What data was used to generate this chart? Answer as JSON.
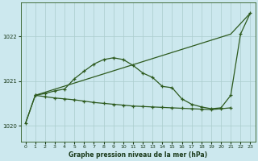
{
  "title": "Graphe pression niveau de la mer (hPa)",
  "bg_color": "#cce8ee",
  "grid_color": "#aacccc",
  "line_color": "#2d5a1e",
  "ylim": [
    1019.65,
    1022.75
  ],
  "yticks": [
    1020,
    1021,
    1022
  ],
  "xlim": [
    -0.5,
    23.5
  ],
  "xticks": [
    0,
    1,
    2,
    3,
    4,
    5,
    6,
    7,
    8,
    9,
    10,
    11,
    12,
    13,
    14,
    15,
    16,
    17,
    18,
    19,
    20,
    21,
    22,
    23
  ],
  "line1_x": [
    0,
    1,
    2,
    3,
    4,
    5,
    6,
    7,
    8,
    9,
    10,
    11,
    12,
    13,
    14,
    15,
    16,
    17,
    18,
    19,
    20,
    21,
    22,
    23
  ],
  "line1_y": [
    1020.05,
    1020.68,
    1020.72,
    1020.78,
    1020.82,
    1021.05,
    1021.22,
    1021.38,
    1021.48,
    1021.52,
    1021.48,
    1021.35,
    1021.18,
    1021.08,
    1020.88,
    1020.85,
    1020.6,
    1020.48,
    1020.42,
    1020.38,
    1020.4,
    1020.68,
    1022.05,
    1022.52
  ],
  "line2_x": [
    0,
    1,
    21,
    23
  ],
  "line2_y": [
    1020.05,
    1020.68,
    1022.05,
    1022.52
  ],
  "line3_x": [
    1,
    2,
    3,
    4,
    5,
    6,
    7,
    8,
    9,
    10,
    11,
    12,
    13,
    14,
    15,
    16,
    17,
    18,
    19,
    20,
    21
  ],
  "line3_y": [
    1020.68,
    1020.65,
    1020.62,
    1020.6,
    1020.58,
    1020.55,
    1020.52,
    1020.5,
    1020.48,
    1020.46,
    1020.44,
    1020.43,
    1020.42,
    1020.41,
    1020.4,
    1020.39,
    1020.38,
    1020.37,
    1020.36,
    1020.38,
    1020.4
  ]
}
